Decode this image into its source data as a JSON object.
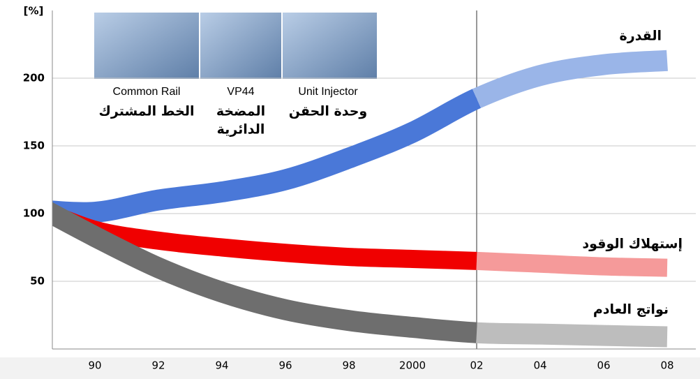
{
  "chart_data": {
    "type": "band-line",
    "y_label": "[%]",
    "categories": [
      null,
      "90",
      "92",
      "94",
      "96",
      "98",
      "2000",
      "02",
      "04",
      "06",
      "08"
    ],
    "ylim": [
      0,
      250
    ],
    "yticks": [
      50,
      100,
      150,
      200
    ],
    "grid": true,
    "vline_at": "02",
    "series": [
      {
        "name": "القدرة",
        "color": "#4a78d8",
        "projected_color": "#9ab5e8",
        "values": [
          103,
          101,
          110,
          116,
          125,
          141,
          160,
          185,
          202,
          210,
          213
        ]
      },
      {
        "name": "إستهلاك الوقود",
        "color": "#f00000",
        "projected_color": "#f59a9a",
        "values": [
          106,
          88,
          80,
          75,
          71,
          68,
          66.5,
          65,
          63,
          61,
          60
        ]
      },
      {
        "name": "نواتج العادم",
        "color": "#6e6e6e",
        "projected_color": "#bdbdbd",
        "values": [
          108,
          83,
          60,
          42,
          29,
          21,
          16,
          12,
          11,
          10,
          9
        ]
      }
    ],
    "annotations": [
      {
        "text": "Common Rail",
        "subtext": [
          "الخط المشترك"
        ]
      },
      {
        "text": "VP44",
        "subtext": [
          "المضخة",
          "الدائرية"
        ]
      },
      {
        "text": "Unit Injector",
        "subtext": [
          "وحدة الحقن"
        ]
      }
    ]
  }
}
